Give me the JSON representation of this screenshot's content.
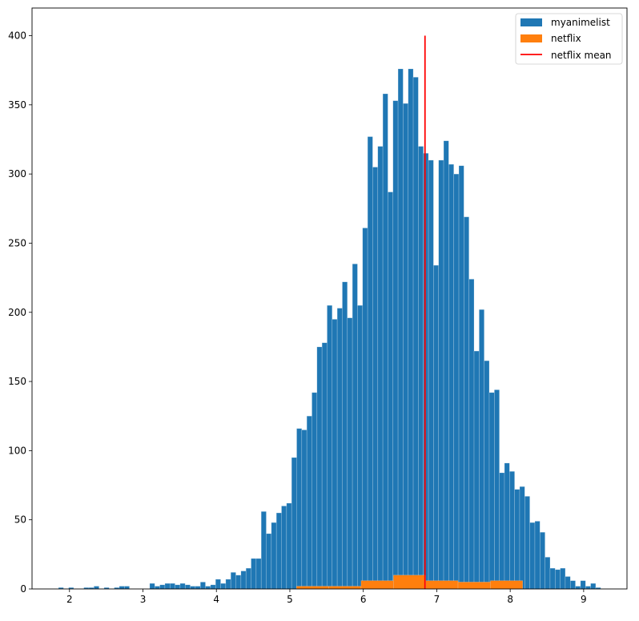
{
  "chart_data": {
    "type": "bar",
    "subtype": "histogram",
    "title": "",
    "xlabel": "",
    "ylabel": "",
    "xlim": [
      1.49,
      9.59
    ],
    "ylim": [
      0,
      420
    ],
    "xticks": [
      "2",
      "3",
      "4",
      "5",
      "6",
      "7",
      "8",
      "9"
    ],
    "yticks": [
      "0",
      "50",
      "100",
      "150",
      "200",
      "250",
      "300",
      "350",
      "400"
    ],
    "grid": false,
    "legend_position": "top-right",
    "series": [
      {
        "name": "myanimelist",
        "kind": "histogram",
        "color": "#1f77b4",
        "bin_start": 1.85,
        "bin_width": 0.069,
        "values": [
          1,
          0,
          1,
          0,
          0,
          1,
          1,
          2,
          0,
          1,
          0,
          1,
          2,
          2,
          0,
          0,
          0,
          0,
          4,
          2,
          3,
          4,
          4,
          3,
          4,
          3,
          2,
          2,
          5,
          2,
          3,
          7,
          4,
          7,
          12,
          10,
          13,
          15,
          22,
          22,
          56,
          40,
          48,
          55,
          60,
          62,
          95,
          116,
          115,
          125,
          142,
          175,
          178,
          205,
          195,
          203,
          222,
          196,
          235,
          205,
          261,
          327,
          305,
          320,
          358,
          287,
          353,
          376,
          351,
          376,
          370,
          320,
          315,
          310,
          234,
          310,
          324,
          307,
          300,
          306,
          269,
          224,
          172,
          202,
          165,
          142,
          144,
          84,
          91,
          85,
          72,
          74,
          67,
          48,
          49,
          41,
          23,
          15,
          14,
          15,
          9,
          6,
          2,
          6,
          2,
          4,
          1
        ]
      },
      {
        "name": "netflix",
        "kind": "histogram",
        "color": "#ff7f0e",
        "bin_edges": [
          5.09,
          5.53,
          5.97,
          6.41,
          6.85,
          7.29,
          7.73,
          8.17
        ],
        "values": [
          2,
          2,
          6,
          10,
          6,
          5,
          6
        ]
      },
      {
        "name": "netflix mean",
        "kind": "vline",
        "color": "#ff0000",
        "x": 6.84,
        "ymin": 0,
        "ymax": 400
      }
    ]
  }
}
